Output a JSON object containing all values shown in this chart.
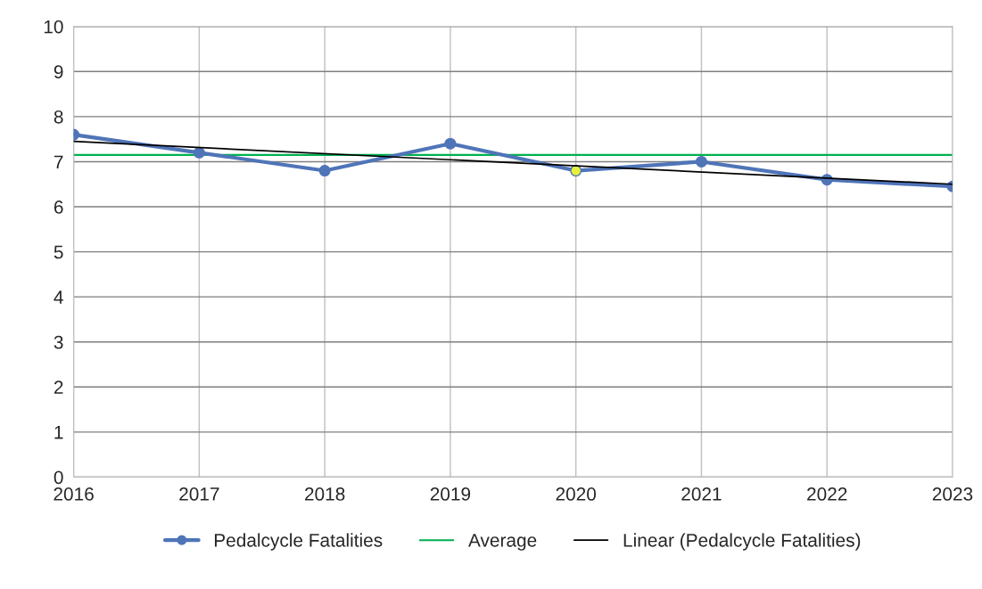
{
  "chart_data": {
    "type": "line",
    "x": [
      2016,
      2017,
      2018,
      2019,
      2020,
      2021,
      2022,
      2023
    ],
    "series": [
      {
        "name": "Pedalcycle Fatalities",
        "color": "#4f74b8",
        "marker": "circle",
        "values": [
          7.6,
          7.2,
          6.8,
          7.4,
          6.8,
          7.0,
          6.6,
          6.45
        ],
        "colors": [
          "#4f74b8",
          "#4f74b8",
          "#4f74b8",
          "#4f74b8",
          "#e6f03c",
          "#4f74b8",
          "#4f74b8",
          "#4f74b8"
        ]
      },
      {
        "name": "Linear (Pedalcycle Fatalities)",
        "type": "line",
        "color": "#000000",
        "marker": "none",
        "x": [
          2016,
          2023
        ],
        "values": [
          7.45,
          6.5
        ]
      }
    ],
    "ref_lines": [
      {
        "axis": "y",
        "value": 7.15,
        "label": "Average",
        "color": "#00b050"
      }
    ],
    "xlim": [
      2016,
      2023
    ],
    "xticks": [
      2016,
      2017,
      2018,
      2019,
      2020,
      2021,
      2022,
      2023
    ],
    "ylim": [
      0,
      10
    ],
    "yticks": [
      0,
      1,
      2,
      3,
      4,
      5,
      6,
      7,
      8,
      9,
      10
    ],
    "grid": true,
    "legend": "bottom"
  }
}
